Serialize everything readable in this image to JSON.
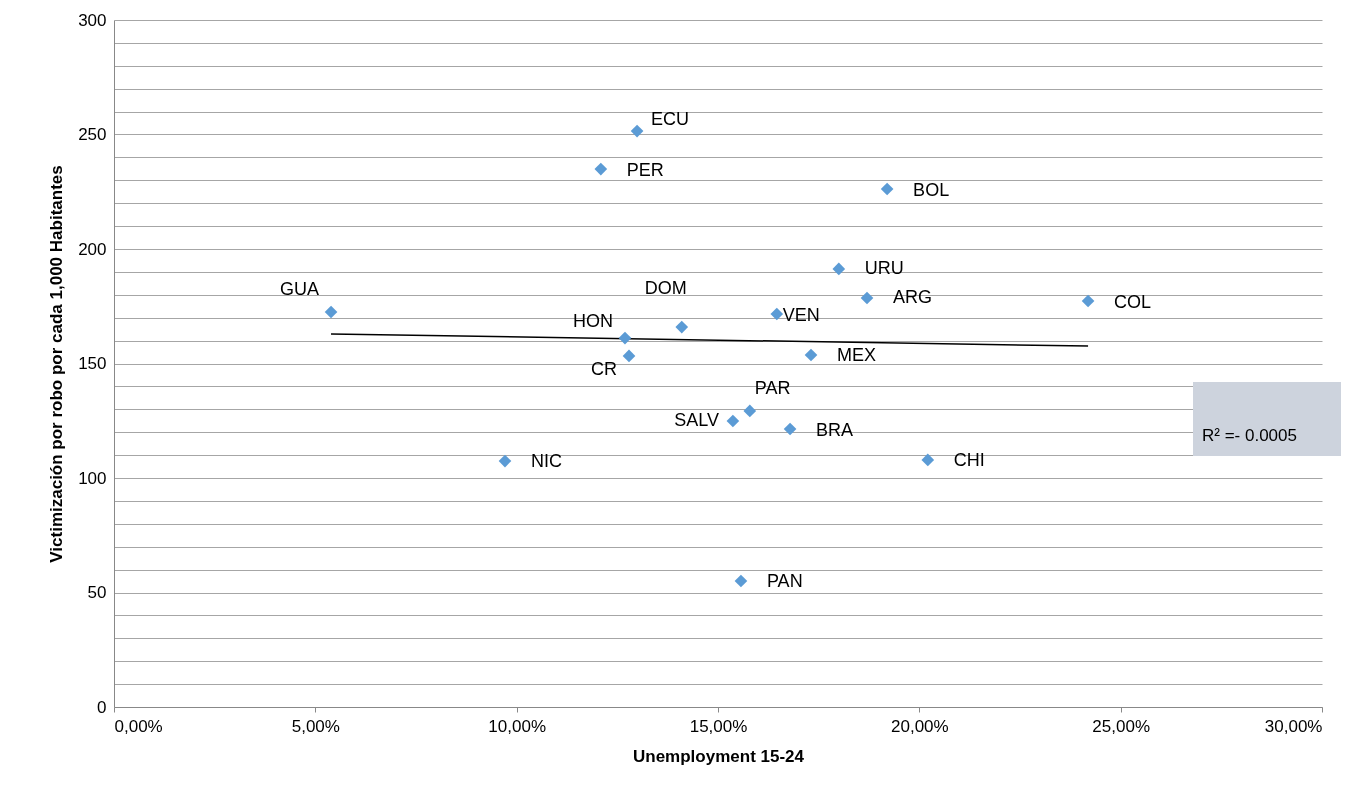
{
  "chart_data": {
    "type": "scatter",
    "xlabel": "Unemployment 15-24",
    "ylabel": "Victimización por robo por cada 1,000 Habitantes",
    "series": [
      {
        "type": "scatter",
        "color": "#5b9bd5",
        "marker": "diamond",
        "x": [
          5.39,
          9.71,
          12.69,
          12.79,
          12.09,
          12.99,
          14.1,
          15.37,
          15.79,
          15.57,
          16.46,
          16.79,
          17.31,
          18.0,
          18.7,
          19.2,
          20.21,
          24.19
        ],
        "values": [
          172.5,
          107.4,
          161.1,
          153.3,
          234.9,
          251.5,
          165.9,
          124.9,
          129.3,
          55.0,
          171.6,
          121.4,
          153.7,
          191.3,
          178.6,
          226.2,
          107.9,
          177.3
        ]
      },
      {
        "type": "line",
        "color": "#000000",
        "line_style": "solid",
        "x": [
          5.39,
          24.19
        ],
        "values": [
          162.9,
          157.6
        ]
      }
    ],
    "annotations": [
      {
        "text": "GUA",
        "x": 5.39,
        "y": 172.5
      },
      {
        "text": "NIC",
        "x": 9.71,
        "y": 107.4
      },
      {
        "text": "HON",
        "x": 12.69,
        "y": 161.1
      },
      {
        "text": "CR",
        "x": 12.79,
        "y": 153.3
      },
      {
        "text": "PER",
        "x": 12.09,
        "y": 234.9
      },
      {
        "text": "ECU",
        "x": 12.99,
        "y": 251.5
      },
      {
        "text": "DOM",
        "x": 14.1,
        "y": 165.9
      },
      {
        "text": "SALV",
        "x": 15.37,
        "y": 124.9
      },
      {
        "text": "PAR",
        "x": 15.79,
        "y": 129.3
      },
      {
        "text": "PAN",
        "x": 15.57,
        "y": 55.0
      },
      {
        "text": "VEN",
        "x": 16.46,
        "y": 171.6
      },
      {
        "text": "BRA",
        "x": 16.79,
        "y": 121.4
      },
      {
        "text": "MEX",
        "x": 17.31,
        "y": 153.7
      },
      {
        "text": "URU",
        "x": 18.0,
        "y": 191.3
      },
      {
        "text": "ARG",
        "x": 18.7,
        "y": 178.6
      },
      {
        "text": "BOL",
        "x": 19.2,
        "y": 226.2
      },
      {
        "text": "CHI",
        "x": 20.21,
        "y": 107.9
      },
      {
        "text": "COL",
        "x": 24.19,
        "y": 177.3
      },
      "R² =- 0.0005"
    ],
    "xlim": [
      0,
      30
    ],
    "xticks": [
      {
        "value": 0,
        "label": "0,00%"
      },
      {
        "value": 5,
        "label": "5,00%"
      },
      {
        "value": 10,
        "label": "10,00%"
      },
      {
        "value": 15,
        "label": "15,00%"
      },
      {
        "value": 20,
        "label": "20,00%"
      },
      {
        "value": 25,
        "label": "25,00%"
      },
      {
        "value": 30,
        "label": "30,00%"
      }
    ],
    "ylim": [
      0,
      300
    ],
    "yticks": [
      0,
      {
        "value": 10,
        "label": null
      },
      {
        "value": 20,
        "label": null
      },
      {
        "value": 30,
        "label": null
      },
      {
        "value": 40,
        "label": null
      },
      50,
      {
        "value": 60,
        "label": null
      },
      {
        "value": 70,
        "label": null
      },
      {
        "value": 80,
        "label": null
      },
      {
        "value": 90,
        "label": null
      },
      100,
      {
        "value": 110,
        "label": null
      },
      {
        "value": 120,
        "label": null
      },
      {
        "value": 130,
        "label": null
      },
      {
        "value": 140,
        "label": null
      },
      150,
      {
        "value": 160,
        "label": null
      },
      {
        "value": 170,
        "label": null
      },
      {
        "value": 180,
        "label": null
      },
      {
        "value": 190,
        "label": null
      },
      200,
      {
        "value": 210,
        "label": null
      },
      {
        "value": 220,
        "label": null
      },
      {
        "value": 230,
        "label": null
      },
      {
        "value": 240,
        "label": null
      },
      250,
      {
        "value": 260,
        "label": null
      },
      {
        "value": 270,
        "label": null
      },
      {
        "value": 280,
        "label": null
      },
      {
        "value": 290,
        "label": null
      },
      300
    ],
    "grid": "y"
  }
}
